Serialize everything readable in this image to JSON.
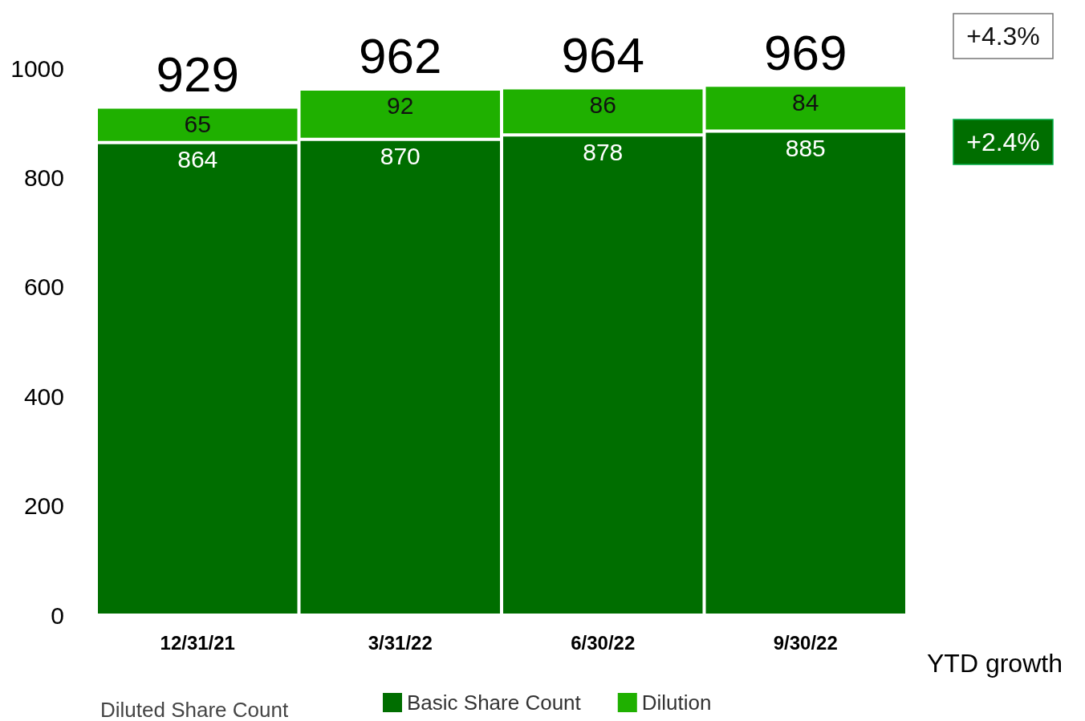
{
  "chart_data": {
    "type": "bar",
    "stacked": true,
    "categories": [
      "12/31/21",
      "3/31/22",
      "6/30/22",
      "9/30/22"
    ],
    "series": [
      {
        "name": "Basic Share Count",
        "color": "#006e00",
        "values": [
          864,
          870,
          878,
          885
        ]
      },
      {
        "name": "Dilution",
        "color": "#1fb000",
        "values": [
          65,
          92,
          86,
          84
        ]
      }
    ],
    "totals": [
      "929",
      "962",
      "964",
      "969"
    ],
    "data_labels": true,
    "ylim": [
      0,
      1000
    ],
    "yticks": [
      0,
      200,
      400,
      600,
      800,
      1000
    ],
    "grid": false,
    "legend": "bottom",
    "annotations": [
      "Diluted Share Count",
      "+4.3%",
      "+2.4%",
      "YTD growth"
    ]
  }
}
